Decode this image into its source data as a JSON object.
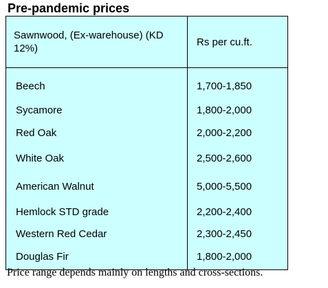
{
  "title": "Pre-pandemic prices",
  "table": {
    "headers": {
      "wood": "Sawnwood, (Ex-warehouse) (KD 12%)",
      "price": "Rs per cu.ft."
    },
    "rows": [
      {
        "wood": "Beech",
        "price": "1,700-1,850"
      },
      {
        "wood": "Sycamore",
        "price": "1,800-2,000"
      },
      {
        "wood": "Red Oak",
        "price": "2,000-2,200"
      },
      {
        "wood": "White Oak",
        "price": "2,500-2,600"
      },
      {
        "wood": "American Walnut",
        "price": "5,000-5,500"
      },
      {
        "wood": "Hemlock STD grade",
        "price": "2,200-2,400"
      },
      {
        "wood": "Western Red Cedar",
        "price": "2,300-2,450"
      },
      {
        "wood": "Douglas Fir",
        "price": "1,800-2,000"
      }
    ]
  },
  "footnote": "Price range depends mainly on lengths and cross-sections.",
  "colors": {
    "table_background": "#ccffff",
    "border": "#000000",
    "text": "#000000"
  }
}
